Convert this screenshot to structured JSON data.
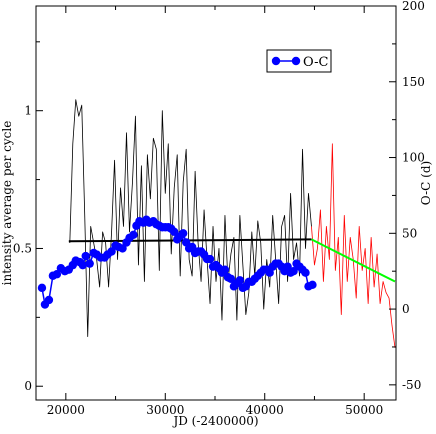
{
  "chart_data": {
    "type": "line",
    "xlabel": "JD (-2400000)",
    "ylabel_left": "intensity average per cycle",
    "ylabel_right": "O-C (d)",
    "xlim": [
      17000,
      53200
    ],
    "ylim_left": [
      -0.05,
      1.38
    ],
    "ylim_right": [
      -60,
      200
    ],
    "x_ticks": [
      20000,
      30000,
      40000,
      50000
    ],
    "x_tick_labels": [
      "20000",
      "30000",
      "40000",
      "50000"
    ],
    "y_left_ticks": [
      0,
      0.5,
      1
    ],
    "y_left_tick_labels": [
      "0",
      "0.5",
      "1"
    ],
    "y_right_ticks": [
      -50,
      0,
      50,
      100,
      150,
      200
    ],
    "y_right_tick_labels": [
      "-50",
      "0",
      "50",
      "100",
      "150",
      "200"
    ],
    "legend": {
      "label": "O-C",
      "position": "top-right"
    },
    "series": [
      {
        "name": "O-C",
        "axis": "right",
        "color": "#0000ff",
        "style": "line+markers",
        "points": [
          [
            17600,
            14
          ],
          [
            17900,
            3
          ],
          [
            18300,
            6
          ],
          [
            18700,
            22
          ],
          [
            19100,
            23
          ],
          [
            19500,
            27
          ],
          [
            19900,
            25
          ],
          [
            20300,
            26
          ],
          [
            20700,
            29
          ],
          [
            21000,
            32
          ],
          [
            21400,
            31
          ],
          [
            21700,
            29
          ],
          [
            22000,
            35
          ],
          [
            22400,
            30
          ],
          [
            22800,
            37
          ],
          [
            23100,
            36
          ],
          [
            23500,
            34
          ],
          [
            23900,
            34
          ],
          [
            24200,
            36
          ],
          [
            24600,
            38
          ],
          [
            25000,
            42
          ],
          [
            25300,
            41
          ],
          [
            25700,
            40
          ],
          [
            26100,
            44
          ],
          [
            26400,
            47
          ],
          [
            26800,
            49
          ],
          [
            27100,
            55
          ],
          [
            27400,
            58
          ],
          [
            27800,
            57
          ],
          [
            28100,
            59
          ],
          [
            28400,
            57
          ],
          [
            28800,
            58
          ],
          [
            29100,
            56
          ],
          [
            29400,
            55
          ],
          [
            29700,
            54
          ],
          [
            30000,
            54
          ],
          [
            30300,
            54
          ],
          [
            30600,
            53
          ],
          [
            30900,
            51
          ],
          [
            31200,
            46
          ],
          [
            31500,
            48
          ],
          [
            31800,
            50
          ],
          [
            32100,
            44
          ],
          [
            32400,
            40
          ],
          [
            32700,
            41
          ],
          [
            33000,
            37
          ],
          [
            33300,
            38
          ],
          [
            33600,
            38
          ],
          [
            33900,
            36
          ],
          [
            34200,
            33
          ],
          [
            34500,
            33
          ],
          [
            34800,
            28
          ],
          [
            35100,
            29
          ],
          [
            35400,
            27
          ],
          [
            35700,
            24
          ],
          [
            36000,
            26
          ],
          [
            36300,
            21
          ],
          [
            36600,
            20
          ],
          [
            36900,
            15
          ],
          [
            37200,
            17
          ],
          [
            37500,
            19
          ],
          [
            37800,
            14
          ],
          [
            38100,
            15
          ],
          [
            38400,
            18
          ],
          [
            38700,
            18
          ],
          [
            39000,
            20
          ],
          [
            39300,
            22
          ],
          [
            39600,
            24
          ],
          [
            39900,
            26
          ],
          [
            40200,
            26
          ],
          [
            40500,
            24
          ],
          [
            40800,
            28
          ],
          [
            41100,
            30
          ],
          [
            41400,
            30
          ],
          [
            41700,
            28
          ],
          [
            42000,
            25
          ],
          [
            42300,
            28
          ],
          [
            42600,
            24
          ],
          [
            42900,
            25
          ],
          [
            43200,
            30
          ],
          [
            43500,
            28
          ],
          [
            43800,
            26
          ],
          [
            44100,
            24
          ],
          [
            44400,
            15
          ],
          [
            44800,
            16
          ]
        ]
      },
      {
        "name": "",
        "axis": "left",
        "color": "#000000",
        "style": "line",
        "points": [
          [
            20400,
            0.52
          ],
          [
            20700,
            0.88
          ],
          [
            21000,
            1.04
          ],
          [
            21300,
            0.98
          ],
          [
            21600,
            1.02
          ],
          [
            21900,
            0.62
          ],
          [
            22200,
            0.18
          ],
          [
            22500,
            0.58
          ],
          [
            22800,
            0.52
          ],
          [
            23100,
            0.46
          ],
          [
            23400,
            0.36
          ],
          [
            23700,
            0.56
          ],
          [
            24000,
            0.52
          ],
          [
            24300,
            0.36
          ],
          [
            24600,
            0.56
          ],
          [
            24900,
            0.82
          ],
          [
            25200,
            0.46
          ],
          [
            25500,
            0.72
          ],
          [
            25800,
            0.58
          ],
          [
            26100,
            0.92
          ],
          [
            26400,
            0.56
          ],
          [
            26700,
            0.74
          ],
          [
            27000,
            0.98
          ],
          [
            27300,
            0.44
          ],
          [
            27600,
            0.8
          ],
          [
            27900,
            0.38
          ],
          [
            28200,
            0.84
          ],
          [
            28500,
            0.68
          ],
          [
            28800,
            0.9
          ],
          [
            29100,
            0.86
          ],
          [
            29400,
            0.42
          ],
          [
            29700,
            1.0
          ],
          [
            30000,
            0.7
          ],
          [
            30300,
            0.88
          ],
          [
            30600,
            0.48
          ],
          [
            30900,
            0.72
          ],
          [
            31200,
            0.84
          ],
          [
            31500,
            0.4
          ],
          [
            31800,
            0.74
          ],
          [
            32100,
            0.86
          ],
          [
            32400,
            0.46
          ],
          [
            32700,
            0.4
          ],
          [
            33000,
            0.78
          ],
          [
            33300,
            0.52
          ],
          [
            33600,
            0.38
          ],
          [
            33900,
            0.64
          ],
          [
            34200,
            0.46
          ],
          [
            34500,
            0.3
          ],
          [
            34800,
            0.58
          ],
          [
            35100,
            0.38
          ],
          [
            35400,
            0.5
          ],
          [
            35700,
            0.24
          ],
          [
            36000,
            0.62
          ],
          [
            36300,
            0.38
          ],
          [
            36600,
            0.48
          ],
          [
            36900,
            0.54
          ],
          [
            37200,
            0.24
          ],
          [
            37500,
            0.62
          ],
          [
            37800,
            0.44
          ],
          [
            38100,
            0.26
          ],
          [
            38400,
            0.34
          ],
          [
            38700,
            0.56
          ],
          [
            39000,
            0.4
          ],
          [
            39300,
            0.6
          ],
          [
            39600,
            0.52
          ],
          [
            39900,
            0.28
          ],
          [
            40200,
            0.46
          ],
          [
            40500,
            0.36
          ],
          [
            40800,
            0.62
          ],
          [
            41100,
            0.46
          ],
          [
            41400,
            0.3
          ],
          [
            41700,
            0.58
          ],
          [
            42000,
            0.62
          ],
          [
            42300,
            0.38
          ],
          [
            42600,
            0.7
          ],
          [
            42900,
            0.46
          ],
          [
            43200,
            0.52
          ],
          [
            43500,
            0.4
          ],
          [
            43800,
            0.86
          ],
          [
            44100,
            0.5
          ],
          [
            44400,
            0.7
          ],
          [
            44700,
            0.58
          ]
        ]
      },
      {
        "name": "",
        "axis": "left",
        "color": "#ff0000",
        "style": "line",
        "points": [
          [
            44700,
            0.58
          ],
          [
            45000,
            0.44
          ],
          [
            45300,
            0.5
          ],
          [
            45600,
            0.64
          ],
          [
            45900,
            0.38
          ],
          [
            46200,
            0.58
          ],
          [
            46500,
            0.46
          ],
          [
            46800,
            0.88
          ],
          [
            47100,
            0.42
          ],
          [
            47400,
            0.54
          ],
          [
            47700,
            0.26
          ],
          [
            48000,
            0.62
          ],
          [
            48300,
            0.38
          ],
          [
            48600,
            0.54
          ],
          [
            48900,
            0.46
          ],
          [
            49200,
            0.32
          ],
          [
            49500,
            0.58
          ],
          [
            49800,
            0.42
          ],
          [
            50100,
            0.5
          ],
          [
            50400,
            0.3
          ],
          [
            50700,
            0.54
          ],
          [
            51000,
            0.36
          ],
          [
            51300,
            0.48
          ],
          [
            51600,
            0.3
          ],
          [
            51900,
            0.38
          ],
          [
            52200,
            0.34
          ],
          [
            52500,
            0.32
          ],
          [
            52800,
            0.22
          ],
          [
            53100,
            0.14
          ]
        ]
      },
      {
        "name": "",
        "axis": "left",
        "color": "#000000",
        "style": "line",
        "points": [
          [
            20300,
            0.526
          ],
          [
            44700,
            0.533
          ]
        ]
      },
      {
        "name": "",
        "axis": "left",
        "color": "#00ff00",
        "style": "line",
        "points": [
          [
            44700,
            0.533
          ],
          [
            53100,
            0.38
          ]
        ]
      }
    ]
  }
}
